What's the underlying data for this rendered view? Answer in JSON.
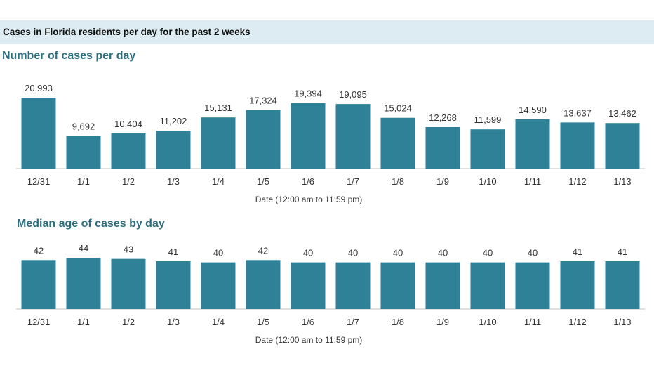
{
  "header": {
    "title": "Cases in Florida residents per day for the past 2 weeks"
  },
  "chart_data": [
    {
      "type": "bar",
      "title": "Number of cases per day",
      "xlabel": "Date (12:00 am to 11:59 pm)",
      "ylabel": "",
      "categories": [
        "12/31",
        "1/1",
        "1/2",
        "1/3",
        "1/4",
        "1/5",
        "1/6",
        "1/7",
        "1/8",
        "1/9",
        "1/10",
        "1/11",
        "1/12",
        "1/13"
      ],
      "values": [
        20993,
        9692,
        10404,
        11202,
        15131,
        17324,
        19394,
        19095,
        15024,
        12268,
        11599,
        14590,
        13637,
        13462
      ],
      "value_labels": [
        "20,993",
        "9,692",
        "10,404",
        "11,202",
        "15,131",
        "17,324",
        "19,394",
        "19,095",
        "15,024",
        "12,268",
        "11,599",
        "14,590",
        "13,637",
        "13,462"
      ],
      "ylim": [
        0,
        20993
      ],
      "grid": false,
      "bar_color": "#2e8197"
    },
    {
      "type": "bar",
      "title": "Median age of cases by day",
      "xlabel": "Date (12:00 am to 11:59 pm)",
      "ylabel": "",
      "categories": [
        "12/31",
        "1/1",
        "1/2",
        "1/3",
        "1/4",
        "1/5",
        "1/6",
        "1/7",
        "1/8",
        "1/9",
        "1/10",
        "1/11",
        "1/12",
        "1/13"
      ],
      "values": [
        42,
        44,
        43,
        41,
        40,
        42,
        40,
        40,
        40,
        40,
        40,
        40,
        41,
        41
      ],
      "value_labels": [
        "42",
        "44",
        "43",
        "41",
        "40",
        "42",
        "40",
        "40",
        "40",
        "40",
        "40",
        "40",
        "41",
        "41"
      ],
      "ylim": [
        0,
        44
      ],
      "grid": false,
      "bar_color": "#2e8197"
    }
  ]
}
